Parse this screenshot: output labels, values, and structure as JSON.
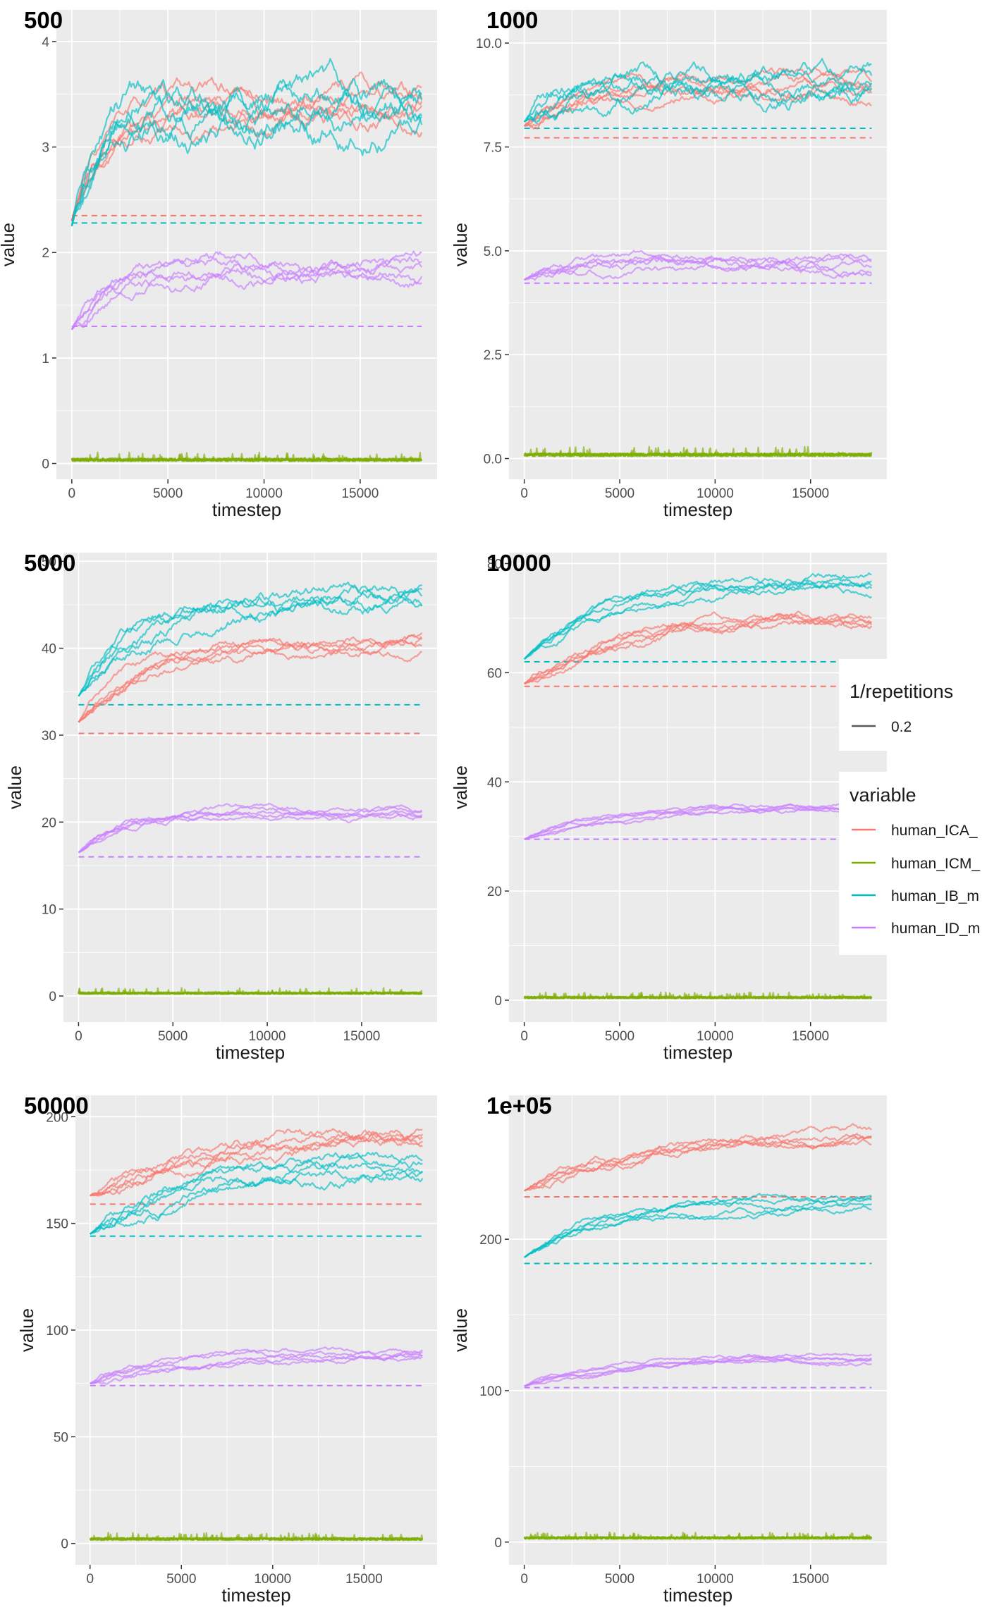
{
  "colors": {
    "human_ICA": "#F8766D",
    "human_ICM": "#7CAE00",
    "human_IB": "#00BFC4",
    "human_ID": "#C77CFF",
    "panel_bg": "#EBEBEB",
    "grid": "#FFFFFF",
    "repetitions_line": "#595959"
  },
  "legend": {
    "repetitions_title": "1/repetitions",
    "repetitions_value": "0.2",
    "variable_title": "variable",
    "entries": [
      {
        "key": "human_ICA",
        "label": "human_ICA_"
      },
      {
        "key": "human_ICM",
        "label": "human_ICM_"
      },
      {
        "key": "human_IB",
        "label": "human_IB_m"
      },
      {
        "key": "human_ID",
        "label": "human_ID_m"
      }
    ]
  },
  "chart_data": [
    {
      "type": "line",
      "title": "500",
      "xlabel": "timestep",
      "ylabel": "value",
      "xlim": [
        -800,
        19000
      ],
      "ylim": [
        -0.15,
        4.3
      ],
      "xticks": [
        0,
        5000,
        10000,
        15000
      ],
      "yticks": [
        0,
        1,
        2,
        3,
        4
      ],
      "ytick_labels": [
        "0",
        "1",
        "2",
        "3",
        "4"
      ],
      "grid": true,
      "legend_position": "right",
      "repetitions": 5,
      "series": [
        {
          "variable": "human_ICA",
          "baseline": 2.35,
          "start": 2.3,
          "plateau": 3.35,
          "rise": 1500,
          "noise": 0.22
        },
        {
          "variable": "human_ICM",
          "baseline": null,
          "start": 0.02,
          "plateau": 0.03,
          "rise": 100,
          "noise": 0.03
        },
        {
          "variable": "human_IB",
          "baseline": 2.28,
          "start": 2.25,
          "plateau": 3.4,
          "rise": 1500,
          "noise": 0.32
        },
        {
          "variable": "human_ID",
          "baseline": 1.3,
          "start": 1.27,
          "plateau": 1.9,
          "rise": 1800,
          "noise": 0.15
        }
      ]
    },
    {
      "type": "line",
      "title": "1000",
      "xlabel": "timestep",
      "ylabel": "value",
      "xlim": [
        -800,
        19000
      ],
      "ylim": [
        -0.5,
        10.8
      ],
      "xticks": [
        0,
        5000,
        10000,
        15000
      ],
      "yticks": [
        0,
        2.5,
        5,
        7.5,
        10
      ],
      "ytick_labels": [
        "0.0",
        "2.5",
        "5.0",
        "7.5",
        "10.0"
      ],
      "grid": true,
      "legend_position": "right",
      "repetitions": 5,
      "series": [
        {
          "variable": "human_ICA",
          "baseline": 7.72,
          "start": 8.0,
          "plateau": 8.9,
          "rise": 2500,
          "noise": 0.35
        },
        {
          "variable": "human_ICM",
          "baseline": null,
          "start": 0.05,
          "plateau": 0.1,
          "rise": 100,
          "noise": 0.08
        },
        {
          "variable": "human_IB",
          "baseline": 7.95,
          "start": 8.1,
          "plateau": 9.2,
          "rise": 2500,
          "noise": 0.5
        },
        {
          "variable": "human_ID",
          "baseline": 4.22,
          "start": 4.3,
          "plateau": 4.85,
          "rise": 2000,
          "noise": 0.25
        }
      ]
    },
    {
      "type": "line",
      "title": "5000",
      "xlabel": "timestep",
      "ylabel": "value",
      "xlim": [
        -800,
        19000
      ],
      "ylim": [
        -3,
        51
      ],
      "xticks": [
        0,
        5000,
        10000,
        15000
      ],
      "yticks": [
        0,
        10,
        20,
        30,
        40,
        50
      ],
      "ytick_labels": [
        "0",
        "10",
        "20",
        "30",
        "40",
        "50"
      ],
      "grid": true,
      "legend_position": "right",
      "repetitions": 5,
      "series": [
        {
          "variable": "human_ICA",
          "baseline": 30.2,
          "start": 31.5,
          "plateau": 40.5,
          "rise": 3500,
          "noise": 1.3
        },
        {
          "variable": "human_ICM",
          "baseline": null,
          "start": 0.2,
          "plateau": 0.4,
          "rise": 100,
          "noise": 0.25
        },
        {
          "variable": "human_IB",
          "baseline": 33.5,
          "start": 34.5,
          "plateau": 46.0,
          "rise": 3500,
          "noise": 1.8
        },
        {
          "variable": "human_ID",
          "baseline": 16.0,
          "start": 16.5,
          "plateau": 21.0,
          "rise": 2500,
          "noise": 0.8
        }
      ]
    },
    {
      "type": "line",
      "title": "10000",
      "xlabel": "timestep",
      "ylabel": "value",
      "xlim": [
        -800,
        19000
      ],
      "ylim": [
        -4,
        82
      ],
      "xticks": [
        0,
        5000,
        10000,
        15000
      ],
      "yticks": [
        0,
        20,
        40,
        60,
        80
      ],
      "ytick_labels": [
        "0",
        "20",
        "40",
        "60",
        "80"
      ],
      "grid": true,
      "legend_position": "right",
      "repetitions": 5,
      "series": [
        {
          "variable": "human_ICA",
          "baseline": 57.5,
          "start": 58.0,
          "plateau": 70.0,
          "rise": 5000,
          "noise": 1.8
        },
        {
          "variable": "human_ICM",
          "baseline": null,
          "start": 0.3,
          "plateau": 0.5,
          "rise": 100,
          "noise": 0.4
        },
        {
          "variable": "human_IB",
          "baseline": 62.0,
          "start": 62.5,
          "plateau": 77.0,
          "rise": 4500,
          "noise": 1.8
        },
        {
          "variable": "human_ID",
          "baseline": 29.5,
          "start": 29.5,
          "plateau": 35.5,
          "rise": 4000,
          "noise": 0.9
        }
      ]
    },
    {
      "type": "line",
      "title": "50000",
      "xlabel": "timestep",
      "ylabel": "value",
      "xlim": [
        -800,
        19000
      ],
      "ylim": [
        -10,
        210
      ],
      "xticks": [
        0,
        5000,
        10000,
        15000
      ],
      "yticks": [
        0,
        50,
        100,
        150,
        200
      ],
      "ytick_labels": [
        "0",
        "50",
        "100",
        "150",
        "200"
      ],
      "grid": true,
      "legend_position": "right",
      "repetitions": 5,
      "series": [
        {
          "variable": "human_ICA",
          "baseline": 159.0,
          "start": 163.0,
          "plateau": 190.0,
          "rise": 7000,
          "noise": 6.0
        },
        {
          "variable": "human_ICM",
          "baseline": null,
          "start": 1.5,
          "plateau": 2.0,
          "rise": 100,
          "noise": 1.2
        },
        {
          "variable": "human_IB",
          "baseline": 144.0,
          "start": 145.0,
          "plateau": 176.0,
          "rise": 5500,
          "noise": 6.0
        },
        {
          "variable": "human_ID",
          "baseline": 74.0,
          "start": 75.0,
          "plateau": 89.0,
          "rise": 5000,
          "noise": 3.0
        }
      ]
    },
    {
      "type": "line",
      "title": "1e+05",
      "xlabel": "timestep",
      "ylabel": "value",
      "xlim": [
        -800,
        19000
      ],
      "ylim": [
        -15,
        295
      ],
      "xticks": [
        0,
        5000,
        10000,
        15000
      ],
      "yticks": [
        0,
        100,
        200
      ],
      "ytick_labels": [
        "0",
        "100",
        "200"
      ],
      "grid": true,
      "legend_position": "right",
      "repetitions": 5,
      "series": [
        {
          "variable": "human_ICA",
          "baseline": 228.0,
          "start": 232.0,
          "plateau": 268.0,
          "rise": 6000,
          "noise": 6.0
        },
        {
          "variable": "human_ICM",
          "baseline": null,
          "start": 2.0,
          "plateau": 3.0,
          "rise": 100,
          "noise": 1.5
        },
        {
          "variable": "human_IB",
          "baseline": 184.0,
          "start": 188.0,
          "plateau": 224.0,
          "rise": 4000,
          "noise": 5.0
        },
        {
          "variable": "human_ID",
          "baseline": 102.0,
          "start": 103.0,
          "plateau": 121.0,
          "rise": 4000,
          "noise": 3.0
        }
      ]
    }
  ]
}
